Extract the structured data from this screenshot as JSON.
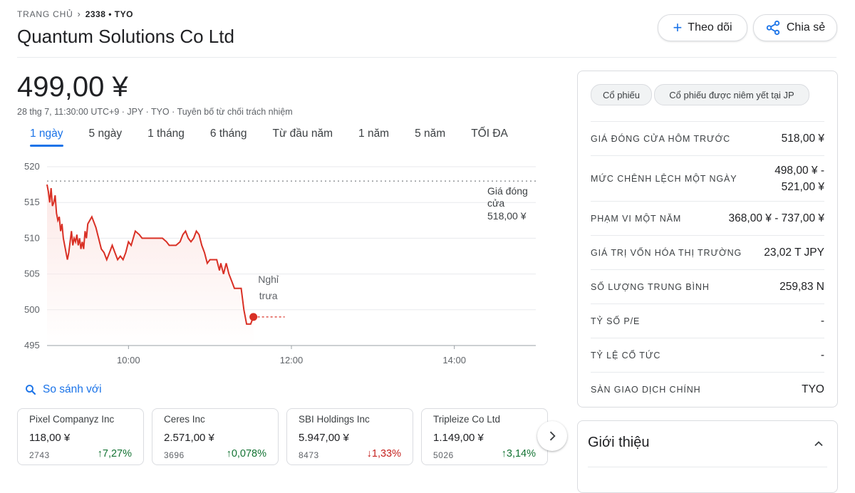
{
  "breadcrumb": {
    "home": "TRANG CHỦ",
    "ticker": "2338 • TYO"
  },
  "title": "Quantum Solutions Co Ltd",
  "header_buttons": {
    "follow": "Theo dõi",
    "share": "Chia sẻ"
  },
  "price": {
    "value": "499,00 ¥",
    "subtitle": "28 thg 7, 11:30:00 UTC+9 · JPY · TYO · Tuyên bố từ chối trách nhiệm"
  },
  "tabs": [
    "1 ngày",
    "5 ngày",
    "1 tháng",
    "6 tháng",
    "Từ đầu năm",
    "1 năm",
    "5 năm",
    "TỐI ĐA"
  ],
  "active_tab": 0,
  "chart_data": {
    "type": "line",
    "y_ticks": [
      "520",
      "515",
      "510",
      "505",
      "500",
      "495"
    ],
    "x_ticks": [
      "10:00",
      "12:00",
      "14:00"
    ],
    "ylim": [
      495,
      520
    ],
    "xlim": [
      "09:00",
      "15:00"
    ],
    "grid": true,
    "previous_close": {
      "value": 518,
      "label_line1": "Giá đóng",
      "label_line2": "cửa",
      "label_line3": "518,00 ¥"
    },
    "lunch_label": {
      "line1": "Nghỉ",
      "line2": "trưa"
    },
    "color": "#d93025",
    "points": [
      [
        "09:00",
        517.5
      ],
      [
        "09:01",
        516.5
      ],
      [
        "09:02",
        515
      ],
      [
        "09:03",
        517
      ],
      [
        "09:04",
        514.5
      ],
      [
        "09:05",
        515
      ],
      [
        "09:06",
        516
      ],
      [
        "09:07",
        513.5
      ],
      [
        "09:08",
        512.5
      ],
      [
        "09:09",
        513
      ],
      [
        "09:10",
        511
      ],
      [
        "09:11",
        512
      ],
      [
        "09:12",
        510
      ],
      [
        "09:13",
        509
      ],
      [
        "09:14",
        508
      ],
      [
        "09:15",
        507
      ],
      [
        "09:16",
        508
      ],
      [
        "09:17",
        509.5
      ],
      [
        "09:18",
        511
      ],
      [
        "09:19",
        509
      ],
      [
        "09:20",
        510
      ],
      [
        "09:21",
        509.5
      ],
      [
        "09:22",
        510.5
      ],
      [
        "09:23",
        509
      ],
      [
        "09:24",
        510
      ],
      [
        "09:25",
        508.5
      ],
      [
        "09:26",
        509.5
      ],
      [
        "09:27",
        508.5
      ],
      [
        "09:28",
        511
      ],
      [
        "09:29",
        510
      ],
      [
        "09:30",
        512
      ],
      [
        "09:33",
        513
      ],
      [
        "09:36",
        511.5
      ],
      [
        "09:38",
        510
      ],
      [
        "09:40",
        508.5
      ],
      [
        "09:42",
        508
      ],
      [
        "09:44",
        507
      ],
      [
        "09:46",
        508
      ],
      [
        "09:48",
        509
      ],
      [
        "09:50",
        508
      ],
      [
        "09:52",
        507
      ],
      [
        "09:54",
        507.5
      ],
      [
        "09:56",
        507
      ],
      [
        "09:58",
        508
      ],
      [
        "10:00",
        509.5
      ],
      [
        "10:02",
        509
      ],
      [
        "10:05",
        511
      ],
      [
        "10:08",
        510.5
      ],
      [
        "10:10",
        510
      ],
      [
        "10:15",
        510
      ],
      [
        "10:20",
        510
      ],
      [
        "10:25",
        510
      ],
      [
        "10:28",
        509.5
      ],
      [
        "10:30",
        509
      ],
      [
        "10:35",
        509
      ],
      [
        "10:38",
        509.5
      ],
      [
        "10:40",
        510.5
      ],
      [
        "10:42",
        511
      ],
      [
        "10:44",
        510
      ],
      [
        "10:46",
        509.5
      ],
      [
        "10:48",
        510
      ],
      [
        "10:50",
        511
      ],
      [
        "10:52",
        510.5
      ],
      [
        "10:54",
        509
      ],
      [
        "10:56",
        508
      ],
      [
        "10:58",
        506.5
      ],
      [
        "11:00",
        507
      ],
      [
        "11:02",
        507
      ],
      [
        "11:05",
        507
      ],
      [
        "11:07",
        505.5
      ],
      [
        "11:08",
        506.5
      ],
      [
        "11:10",
        505
      ],
      [
        "11:12",
        506.5
      ],
      [
        "11:14",
        505
      ],
      [
        "11:16",
        504
      ],
      [
        "11:18",
        503
      ],
      [
        "11:20",
        503
      ],
      [
        "11:23",
        503
      ],
      [
        "11:24",
        501.5
      ],
      [
        "11:25",
        500
      ],
      [
        "11:26",
        499
      ],
      [
        "11:27",
        498
      ],
      [
        "11:30",
        498
      ],
      [
        "11:32",
        499
      ]
    ]
  },
  "compare": {
    "label": "So sánh với"
  },
  "compare_cards": [
    {
      "name": "Pixel Companyz Inc",
      "price": "118,00 ¥",
      "code": "2743",
      "change": "7,27%",
      "direction": "up"
    },
    {
      "name": "Ceres Inc",
      "price": "2.571,00 ¥",
      "code": "3696",
      "change": "0,078%",
      "direction": "up"
    },
    {
      "name": "SBI Holdings Inc",
      "price": "5.947,00 ¥",
      "code": "8473",
      "change": "1,33%",
      "direction": "down"
    },
    {
      "name": "Tripleize Co Ltd",
      "price": "1.149,00 ¥",
      "code": "5026",
      "change": "3,14%",
      "direction": "up"
    }
  ],
  "chips": [
    "Cổ phiếu",
    "Cổ phiếu được niêm yết tại JP"
  ],
  "stats": [
    {
      "label": "GIÁ ĐÓNG CỬA HÔM TRƯỚC",
      "value": "518,00 ¥"
    },
    {
      "label": "MỨC CHÊNH LỆCH MỘT NGÀY",
      "value": "498,00 ¥ -",
      "value2": "521,00 ¥"
    },
    {
      "label": "PHẠM VI MỘT NĂM",
      "value": "368,00 ¥ - 737,00 ¥"
    },
    {
      "label": "GIÁ TRỊ VỐN HÓA THỊ TRƯỜNG",
      "value": "23,02 T JPY"
    },
    {
      "label": "SỐ LƯỢNG TRUNG BÌNH",
      "value": "259,83 N"
    },
    {
      "label": "TỶ SỐ P/E",
      "value": "-"
    },
    {
      "label": "TỶ LỆ CỔ TỨC",
      "value": "-"
    },
    {
      "label": "SÀN GIAO DỊCH CHÍNH",
      "value": "TYO"
    }
  ],
  "about": {
    "title": "Giới thiệu"
  }
}
